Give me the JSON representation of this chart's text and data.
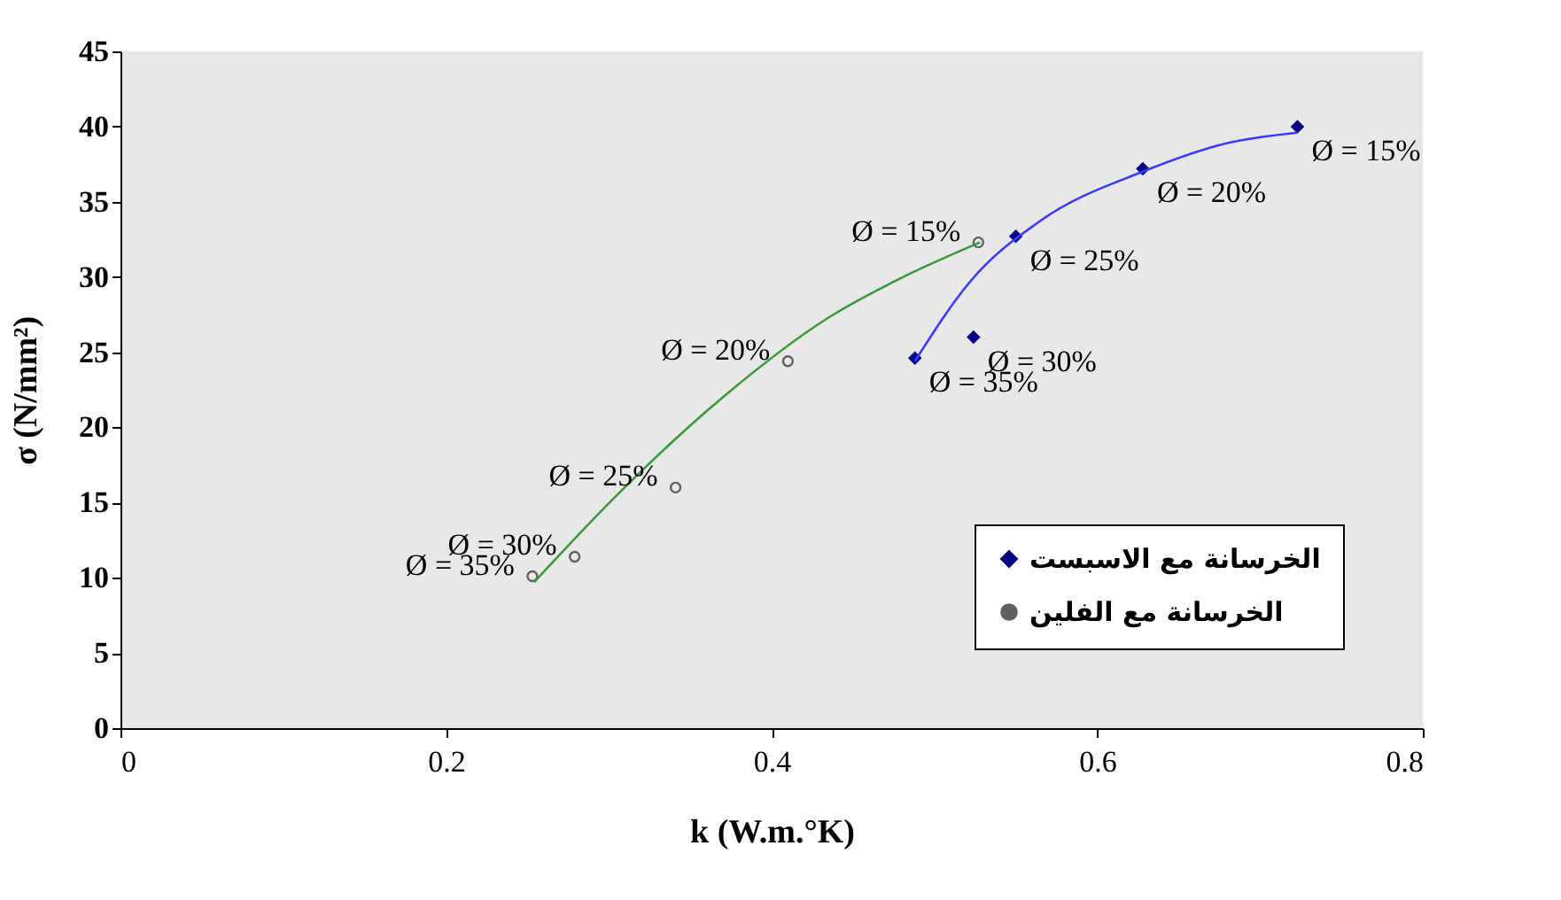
{
  "chart_data": {
    "type": "scatter",
    "xlabel": "k (W.m.°K)",
    "ylabel": "σ (N/mm²)",
    "xlim": [
      0,
      0.8
    ],
    "xticks": [
      0,
      0.2,
      0.4,
      0.6,
      0.8
    ],
    "ylim": [
      0,
      45
    ],
    "yticks": [
      0,
      5,
      10,
      15,
      20,
      25,
      30,
      35,
      40,
      45
    ],
    "grid": false,
    "legend": "bottom right",
    "series": [
      {
        "name": "الخرسانة مع الاسبست",
        "marker": "diamond",
        "color": "#000080",
        "x": [
          0.723,
          0.628,
          0.55,
          0.524,
          0.488
        ],
        "values": [
          40.0,
          37.2,
          32.7,
          26.0,
          24.6
        ]
      },
      {
        "name": "الخرسانة مع الفلين",
        "marker": "circle",
        "color": "#606060",
        "x": [
          0.527,
          0.41,
          0.341,
          0.279,
          0.253
        ],
        "values": [
          32.3,
          24.4,
          16.0,
          11.4,
          10.1
        ]
      },
      {
        "type": "line",
        "marker": "none",
        "color": "#3b3bff",
        "x": [
          0.488,
          0.522,
          0.566,
          0.628,
          0.68,
          0.723
        ],
        "values": [
          24.4,
          29.7,
          33.8,
          37.0,
          38.9,
          39.6
        ]
      },
      {
        "type": "line",
        "marker": "none",
        "color": "#3a9a3a",
        "x": [
          0.254,
          0.305,
          0.37,
          0.435,
          0.479,
          0.528
        ],
        "values": [
          9.7,
          15.5,
          22.0,
          27.3,
          29.9,
          32.3
        ]
      }
    ],
    "annotations": [
      {
        "text": "Ø = 15%",
        "x": 0.723,
        "y": 40.0
      },
      {
        "text": "Ø = 20%",
        "x": 0.628,
        "y": 37.2
      },
      {
        "text": "Ø = 25%",
        "x": 0.55,
        "y": 32.7
      },
      {
        "text": "Ø = 30%",
        "x": 0.524,
        "y": 26.0
      },
      {
        "text": "Ø = 35%",
        "x": 0.488,
        "y": 24.6
      },
      {
        "text": "Ø = 15%",
        "x": 0.527,
        "y": 32.3
      },
      {
        "text": "Ø = 20%",
        "x": 0.41,
        "y": 24.4
      },
      {
        "text": "Ø = 25%",
        "x": 0.341,
        "y": 16.0
      },
      {
        "text": "Ø = 30%",
        "x": 0.279,
        "y": 11.4
      },
      {
        "text": "Ø = 35%",
        "x": 0.253,
        "y": 10.1
      }
    ]
  }
}
